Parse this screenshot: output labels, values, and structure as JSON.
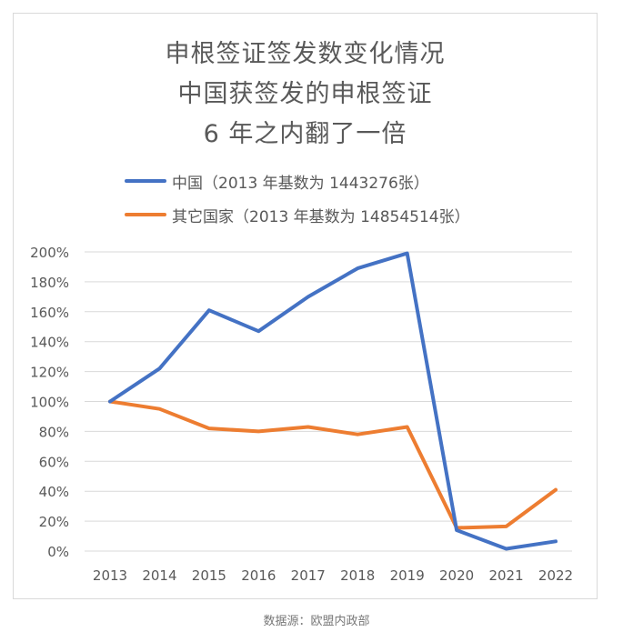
{
  "chart_data": {
    "type": "line",
    "title": [
      "申根签证签发数变化情况",
      "中国获签发的申根签证",
      "6 年之内翻了一倍"
    ],
    "categories": [
      "2013",
      "2014",
      "2015",
      "2016",
      "2017",
      "2018",
      "2019",
      "2020",
      "2021",
      "2022"
    ],
    "series": [
      {
        "name": "中国（2013 年基数为 1443276张）",
        "color": "#4472c4",
        "values": [
          100,
          122,
          161,
          147,
          170,
          189,
          199,
          14,
          1.5,
          6.5
        ]
      },
      {
        "name": "其它国家（2013 年基数为 14854514张）",
        "color": "#ed7d31",
        "values": [
          100,
          95,
          82,
          80,
          83,
          78,
          83,
          15.5,
          16.5,
          41
        ]
      }
    ],
    "yticks": [
      "0%",
      "20%",
      "40%",
      "60%",
      "80%",
      "100%",
      "120%",
      "140%",
      "160%",
      "180%",
      "200%"
    ],
    "ylim": [
      0,
      200
    ],
    "grid": true,
    "legend": "top"
  },
  "source": "数据源：欧盟内政部"
}
